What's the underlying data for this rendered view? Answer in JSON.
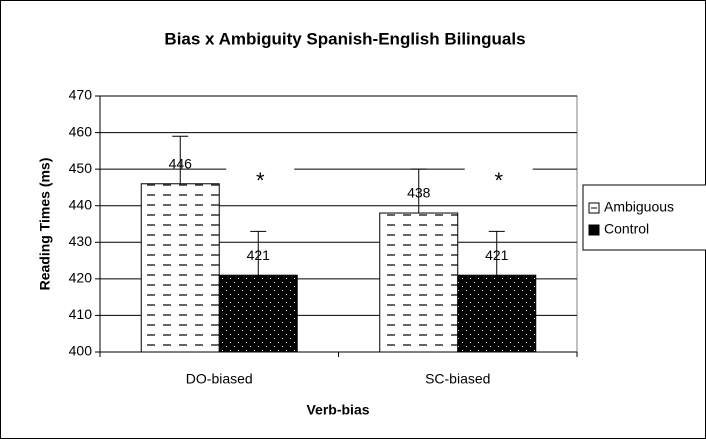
{
  "chart_data": {
    "type": "bar",
    "title": "Bias x Ambiguity Spanish-English Bilinguals",
    "x_label": "Verb-bias",
    "y_label": "Reading Times (ms)",
    "categories": [
      "DO-biased",
      "SC-biased"
    ],
    "series": [
      {
        "name": "Ambiguous",
        "color": "#ffffff",
        "values": [
          446,
          438
        ],
        "errors": [
          13,
          12
        ]
      },
      {
        "name": "Control",
        "color": "#000000",
        "values": [
          421,
          421
        ],
        "errors": [
          12,
          12
        ]
      }
    ],
    "annotations": [
      "*",
      "*"
    ],
    "ylim": [
      400,
      470
    ],
    "yticks": [
      400,
      410,
      420,
      430,
      440,
      450,
      460,
      470
    ],
    "grid": true,
    "legend": "right"
  }
}
